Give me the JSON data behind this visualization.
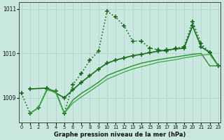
{
  "title": "Graphe pression niveau de la mer (hPa)",
  "bg_color": "#c8e8e0",
  "grid_color": "#b0d4cc",
  "lines": [
    {
      "x": [
        0,
        1,
        2,
        3,
        4,
        5,
        6,
        7,
        8,
        9,
        10,
        11,
        12,
        13,
        14,
        15,
        16,
        17,
        18,
        19,
        20,
        21,
        22,
        23
      ],
      "y": [
        1009.1,
        1008.65,
        1008.78,
        1009.2,
        1009.15,
        1008.65,
        1009.3,
        1009.55,
        1009.85,
        1010.05,
        1010.95,
        1010.82,
        1010.62,
        1010.28,
        1010.28,
        1010.12,
        1010.08,
        1010.05,
        1010.12,
        1010.15,
        1010.72,
        1010.22,
        1010.02,
        1009.72
      ],
      "color": "#1a6b1a",
      "lw": 1.2,
      "ls": ":",
      "marker": "+",
      "ms": 4,
      "mew": 1.2
    },
    {
      "x": [
        1,
        3,
        5,
        6,
        7,
        8,
        9,
        10,
        11,
        12,
        13,
        14,
        15,
        16,
        17,
        18,
        19,
        20,
        21,
        22,
        23
      ],
      "y": [
        1009.2,
        1009.22,
        1009.0,
        1009.18,
        1009.35,
        1009.5,
        1009.65,
        1009.78,
        1009.85,
        1009.9,
        1009.95,
        1009.98,
        1010.02,
        1010.05,
        1010.08,
        1010.1,
        1010.12,
        1010.62,
        1010.15,
        1010.02,
        1009.72
      ],
      "color": "#1a6b1a",
      "lw": 1.2,
      "ls": "-",
      "marker": "+",
      "ms": 4,
      "mew": 1.2
    },
    {
      "x": [
        1,
        2,
        3,
        4,
        5,
        6,
        7,
        8,
        9,
        10,
        11,
        12,
        13,
        14,
        15,
        16,
        17,
        18,
        19,
        20,
        21,
        22,
        23
      ],
      "y": [
        1008.65,
        1008.78,
        1009.2,
        1009.15,
        1008.65,
        1008.95,
        1009.1,
        1009.22,
        1009.35,
        1009.5,
        1009.58,
        1009.65,
        1009.72,
        1009.78,
        1009.82,
        1009.86,
        1009.89,
        1009.92,
        1009.95,
        1009.98,
        1010.0,
        1009.72,
        1009.72
      ],
      "color": "#2e8b2e",
      "lw": 1.0,
      "ls": "-",
      "marker": null,
      "ms": 0,
      "mew": 0
    },
    {
      "x": [
        1,
        2,
        3,
        4,
        5,
        6,
        7,
        8,
        9,
        10,
        11,
        12,
        13,
        14,
        15,
        16,
        17,
        18,
        19,
        20,
        21,
        22,
        23
      ],
      "y": [
        1008.65,
        1008.78,
        1009.18,
        1009.12,
        1008.65,
        1008.88,
        1009.02,
        1009.15,
        1009.28,
        1009.42,
        1009.5,
        1009.58,
        1009.65,
        1009.7,
        1009.75,
        1009.8,
        1009.83,
        1009.86,
        1009.9,
        1009.93,
        1009.96,
        1009.98,
        1009.72
      ],
      "color": "#3aaa3a",
      "lw": 0.9,
      "ls": "-",
      "marker": null,
      "ms": 0,
      "mew": 0
    }
  ],
  "ylim": [
    1008.45,
    1011.15
  ],
  "yticks": [
    1009,
    1010,
    1011
  ],
  "ytick_labels": [
    "1009",
    "1010",
    "1011"
  ],
  "xlim": [
    -0.3,
    23.3
  ],
  "xticks": [
    0,
    1,
    2,
    3,
    4,
    5,
    6,
    7,
    8,
    9,
    10,
    11,
    12,
    13,
    14,
    15,
    16,
    17,
    18,
    19,
    20,
    21,
    22,
    23
  ]
}
